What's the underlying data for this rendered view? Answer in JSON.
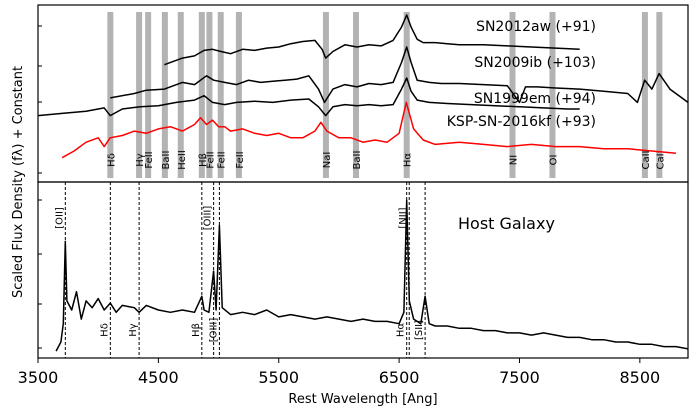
{
  "chart_data": [
    {
      "panel": "top",
      "type": "line",
      "xlim": [
        3500,
        8900
      ],
      "ylabel": "Scaled Flux Density (fλ) + Constant",
      "series": [
        {
          "name": "SN2012aw (+91)",
          "color": "#000000",
          "x": [
            4550,
            4700,
            4800,
            4880,
            4950,
            5020,
            5100,
            5200,
            5300,
            5400,
            5500,
            5600,
            5700,
            5800,
            5860,
            5890,
            5950,
            6050,
            6150,
            6250,
            6350,
            6450,
            6520,
            6563,
            6600,
            6650,
            6700,
            6800,
            6900,
            7000,
            7200,
            7400,
            7600,
            7800,
            8000
          ],
          "y": [
            6.3,
            6.6,
            6.7,
            6.95,
            7.0,
            6.9,
            6.8,
            7.0,
            6.95,
            7.05,
            7.1,
            7.25,
            7.35,
            7.4,
            7.0,
            6.6,
            6.9,
            7.2,
            7.1,
            7.2,
            7.15,
            7.4,
            8.0,
            8.55,
            8.0,
            7.45,
            7.3,
            7.3,
            7.25,
            7.2,
            7.2,
            7.15,
            7.1,
            7.05,
            7.0
          ]
        },
        {
          "name": "SN2009ib (+103)",
          "color": "#000000",
          "x": [
            4100,
            4300,
            4400,
            4550,
            4700,
            4800,
            4900,
            4960,
            5050,
            5150,
            5250,
            5350,
            5450,
            5550,
            5650,
            5750,
            5830,
            5880,
            5950,
            6050,
            6150,
            6250,
            6350,
            6450,
            6520,
            6563,
            6600,
            6650,
            6750,
            6850,
            7000,
            7200,
            7400,
            7500,
            7550,
            7650,
            7800,
            8000,
            8200,
            8400,
            8480,
            8540,
            8600,
            8660,
            8750,
            8900
          ],
          "y": [
            4.8,
            5.0,
            5.15,
            5.2,
            5.5,
            5.4,
            5.8,
            5.6,
            5.5,
            5.4,
            5.6,
            5.5,
            5.55,
            5.6,
            5.65,
            5.8,
            5.2,
            4.6,
            5.2,
            5.4,
            5.3,
            5.45,
            5.4,
            5.5,
            6.4,
            7.1,
            6.4,
            5.6,
            5.5,
            5.45,
            5.45,
            5.4,
            5.35,
            4.6,
            5.3,
            5.3,
            5.25,
            5.2,
            5.1,
            5.0,
            4.6,
            5.6,
            5.2,
            5.9,
            5.2,
            4.6
          ]
        },
        {
          "name": "SN1999em (+94)",
          "color": "#000000",
          "x": [
            3500,
            3700,
            3900,
            4050,
            4100,
            4200,
            4350,
            4500,
            4650,
            4800,
            4880,
            4950,
            5050,
            5150,
            5300,
            5450,
            5600,
            5750,
            5830,
            5890,
            5950,
            6050,
            6150,
            6250,
            6350,
            6450,
            6520,
            6563,
            6600,
            6650,
            6750,
            6900,
            7100,
            7300,
            7500,
            7700,
            7900,
            8000
          ],
          "y": [
            4.0,
            4.1,
            4.2,
            4.35,
            4.0,
            4.3,
            4.4,
            4.45,
            4.6,
            4.7,
            4.9,
            4.6,
            4.5,
            4.6,
            4.65,
            4.6,
            4.7,
            4.75,
            4.4,
            4.0,
            4.4,
            4.5,
            4.45,
            4.5,
            4.45,
            4.5,
            5.2,
            5.7,
            5.1,
            4.7,
            4.6,
            4.55,
            4.5,
            4.45,
            4.4,
            4.35,
            4.3,
            4.3
          ]
        },
        {
          "name": "KSP-SN-2016kf (+93)",
          "color": "#ff0000",
          "x": [
            3700,
            3800,
            3900,
            4000,
            4050,
            4100,
            4200,
            4300,
            4400,
            4500,
            4600,
            4700,
            4800,
            4850,
            4900,
            4950,
            5000,
            5050,
            5100,
            5200,
            5300,
            5400,
            5500,
            5600,
            5700,
            5800,
            5850,
            5900,
            6000,
            6100,
            6200,
            6300,
            6400,
            6500,
            6560,
            6620,
            6700,
            6800,
            7000,
            7200,
            7400,
            7600,
            7800,
            8000,
            8200,
            8400,
            8600,
            8800
          ],
          "y": [
            2.1,
            2.4,
            2.8,
            3.0,
            2.6,
            3.0,
            3.1,
            3.3,
            3.2,
            3.4,
            3.5,
            3.3,
            3.6,
            3.9,
            3.6,
            3.8,
            3.5,
            3.5,
            3.3,
            3.4,
            3.2,
            3.1,
            3.2,
            3.0,
            3.0,
            3.3,
            3.7,
            3.3,
            3.0,
            3.0,
            2.8,
            2.9,
            2.8,
            3.2,
            4.6,
            3.4,
            2.9,
            2.7,
            2.8,
            2.7,
            2.6,
            2.7,
            2.6,
            2.6,
            2.5,
            2.5,
            2.4,
            2.3
          ]
        }
      ],
      "line_bands": [
        {
          "label": "Hδ",
          "x": 4101
        },
        {
          "label": "Hγ",
          "x": 4340
        },
        {
          "label": "FeII",
          "x": 4415
        },
        {
          "label": "BaII",
          "x": 4554
        },
        {
          "label": "HeII",
          "x": 4686
        },
        {
          "label": "Hβ",
          "x": 4861
        },
        {
          "label": "FeII",
          "x": 4924
        },
        {
          "label": "FeII",
          "x": 5018
        },
        {
          "label": "FeII",
          "x": 5169
        },
        {
          "label": "NaI",
          "x": 5892
        },
        {
          "label": "BaII",
          "x": 6142
        },
        {
          "label": "Hα",
          "x": 6563
        },
        {
          "label": "NI",
          "x": 7442
        },
        {
          "label": "OI",
          "x": 7774
        },
        {
          "label": "CaII",
          "x": 8542
        },
        {
          "label": "CaII",
          "x": 8662
        }
      ],
      "series_labels": [
        "SN2012aw (+91)",
        "SN2009ib (+103)",
        "SN1999em (+94)",
        "KSP-SN-2016kf (+93)"
      ]
    },
    {
      "panel": "bottom",
      "type": "line",
      "title": "Host Galaxy",
      "xlim": [
        3500,
        8900
      ],
      "xlabel": "Rest Wavelength [Ang]",
      "xticks": [
        3500,
        4500,
        5500,
        6500,
        7500,
        8500
      ],
      "series": [
        {
          "name": "Host Galaxy",
          "color": "#000000",
          "x": [
            3650,
            3690,
            3710,
            3727,
            3740,
            3780,
            3820,
            3860,
            3900,
            3950,
            4000,
            4050,
            4101,
            4150,
            4200,
            4300,
            4340,
            4400,
            4500,
            4600,
            4700,
            4800,
            4861,
            4880,
            4920,
            4959,
            4980,
            5007,
            5030,
            5100,
            5200,
            5300,
            5400,
            5500,
            5600,
            5700,
            5800,
            5900,
            6000,
            6100,
            6200,
            6300,
            6400,
            6500,
            6540,
            6563,
            6585,
            6620,
            6680,
            6716,
            6750,
            6800,
            6900,
            7000,
            7100,
            7200,
            7300,
            7400,
            7500,
            7600,
            7700,
            7800,
            7900,
            8000,
            8100,
            8200,
            8300,
            8400,
            8500,
            8600,
            8700,
            8800,
            8900
          ],
          "y": [
            0.8,
            1.2,
            2.0,
            5.6,
            3.0,
            2.6,
            3.4,
            2.2,
            3.0,
            2.7,
            3.1,
            2.6,
            2.9,
            2.5,
            2.8,
            2.7,
            2.5,
            2.8,
            2.6,
            2.5,
            2.6,
            2.5,
            3.2,
            2.6,
            2.5,
            4.3,
            2.6,
            6.3,
            2.7,
            2.4,
            2.5,
            2.4,
            2.6,
            2.3,
            2.4,
            2.3,
            2.2,
            2.3,
            2.2,
            2.1,
            2.2,
            2.1,
            2.1,
            2.0,
            2.5,
            7.4,
            3.0,
            2.2,
            2.0,
            3.2,
            2.0,
            1.9,
            1.9,
            1.8,
            1.8,
            1.7,
            1.7,
            1.6,
            1.6,
            1.5,
            1.6,
            1.5,
            1.4,
            1.4,
            1.3,
            1.3,
            1.2,
            1.2,
            1.1,
            1.1,
            1.0,
            1.0,
            0.9
          ]
        }
      ],
      "line_markers": [
        {
          "label": "[OII]",
          "x": 3727,
          "pos": "top"
        },
        {
          "label": "Hδ",
          "x": 4101,
          "pos": "bottom"
        },
        {
          "label": "Hγ",
          "x": 4340,
          "pos": "bottom"
        },
        {
          "label": "Hβ",
          "x": 4861,
          "pos": "bottom"
        },
        {
          "label": "[OIII]",
          "x": 4959,
          "pos": "top"
        },
        {
          "label": "[OIII]",
          "x": 5007,
          "pos": "bottom"
        },
        {
          "label": "Hα",
          "x": 6563,
          "pos": "bottom"
        },
        {
          "label": "[NII]",
          "x": 6584,
          "pos": "top"
        },
        {
          "label": "[SII]",
          "x": 6716,
          "pos": "bottom"
        }
      ]
    }
  ]
}
